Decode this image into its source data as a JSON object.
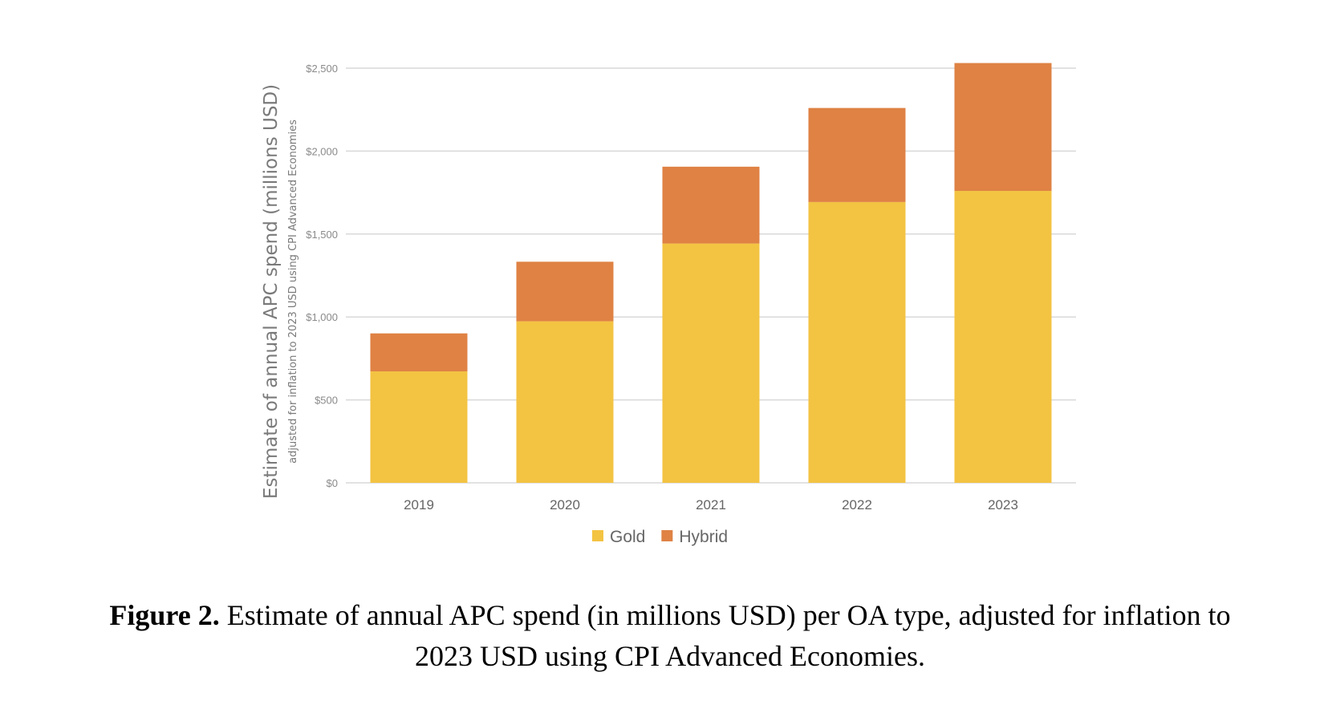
{
  "chart_data": {
    "type": "bar",
    "stacked": true,
    "categories": [
      "2019",
      "2020",
      "2021",
      "2022",
      "2023"
    ],
    "series": [
      {
        "name": "Gold",
        "color": "#F3C342",
        "values": [
          672,
          974,
          1443,
          1693,
          1760
        ]
      },
      {
        "name": "Hybrid",
        "color": "#DF8244",
        "values": [
          229,
          359,
          463,
          567,
          771
        ]
      }
    ],
    "ylabel": "Estimate of annual APC spend (millions USD)",
    "ysublabel": "adjusted for inflation to 2023 USD using CPI Advanced Economies",
    "ylim": [
      0,
      2500
    ],
    "yticks": [
      0,
      500,
      1000,
      1500,
      2000,
      2500
    ],
    "ytick_labels": [
      "$0",
      "$500",
      "$1,000",
      "$1,500",
      "$2,000",
      "$2,500"
    ],
    "grid": true,
    "legend_position": "bottom"
  },
  "caption": {
    "label": "Figure 2.",
    "text": " Estimate of annual APC spend (in millions USD) per OA type, adjusted for inflation to",
    "text2": "2023 USD using CPI Advanced Economies."
  }
}
